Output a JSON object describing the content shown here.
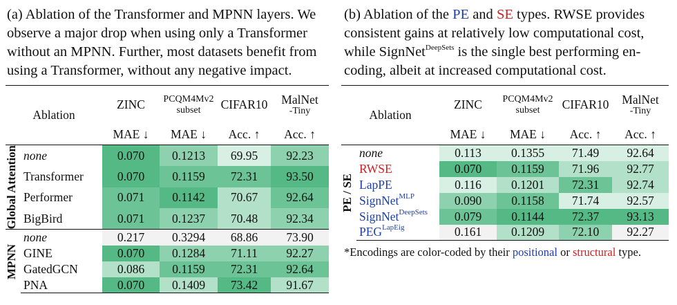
{
  "caption_a": {
    "lines": [
      "(a) Ablation of the Transformer and MPNN layers. We",
      "observe a major drop when using only a Transformer",
      "without an MPNN. Further, most datasets benefit from",
      "using a Transformer, without any negative impact."
    ]
  },
  "caption_b": {
    "p1": "(b) Ablation of the ",
    "pe": "PE",
    "p2": " and ",
    "se": "SE",
    "p3": " types. RWSE provides",
    "line2": "consistent gains at relatively low computational cost,",
    "l3a": "while SignNet",
    "l3sup": "DeepSets",
    "l3b": " is the single best performing en-",
    "line4": "coding, albeit at increased computational cost."
  },
  "table_a": {
    "headers": {
      "ablation": "Ablation",
      "zinc": "ZINC",
      "pcqm": "PCQM4Mv2",
      "pcqm_sub": "subset",
      "cifar": "CIFAR10",
      "malnet": "MalNet",
      "malnet_sub": "-Tiny",
      "m_zinc": "MAE ↓",
      "m_pcqm": "MAE ↓",
      "m_cifar": "Acc. ↑",
      "m_malnet": "Acc. ↑"
    },
    "groups": [
      {
        "label": "Global Attention",
        "rows": [
          {
            "name": "none",
            "italic": true,
            "values": [
              "0.070",
              "0.1213",
              "69.95",
              "92.23"
            ],
            "shades": [
              "c5",
              "c3",
              "c1",
              "c3"
            ]
          },
          {
            "name": "Transformer",
            "italic": false,
            "values": [
              "0.070",
              "0.1159",
              "72.31",
              "93.50"
            ],
            "shades": [
              "c5",
              "c4",
              "c4",
              "c5"
            ]
          },
          {
            "name": "Performer",
            "italic": false,
            "values": [
              "0.071",
              "0.1142",
              "70.67",
              "92.64"
            ],
            "shades": [
              "c4",
              "c5",
              "c2",
              "c4"
            ]
          },
          {
            "name": "BigBird",
            "italic": false,
            "values": [
              "0.071",
              "0.1237",
              "70.48",
              "92.34"
            ],
            "shades": [
              "c4",
              "c3",
              "c2",
              "c3"
            ]
          }
        ]
      },
      {
        "label": "MPNN",
        "rows": [
          {
            "name": "none",
            "italic": true,
            "values": [
              "0.217",
              "0.3294",
              "68.86",
              "73.90"
            ],
            "shades": [
              "c0",
              "c0",
              "c0",
              "c0"
            ]
          },
          {
            "name": "GINE",
            "italic": false,
            "values": [
              "0.070",
              "0.1284",
              "71.11",
              "92.27"
            ],
            "shades": [
              "c5",
              "c3",
              "c3",
              "c3"
            ]
          },
          {
            "name": "GatedGCN",
            "italic": false,
            "values": [
              "0.086",
              "0.1159",
              "72.31",
              "92.64"
            ],
            "shades": [
              "c2",
              "c4",
              "c4",
              "c4"
            ]
          },
          {
            "name": "PNA",
            "italic": false,
            "values": [
              "0.070",
              "0.1409",
              "73.42",
              "91.67"
            ],
            "shades": [
              "c5",
              "c2",
              "c5",
              "c2"
            ]
          }
        ]
      }
    ]
  },
  "table_b": {
    "headers": {
      "ablation": "Ablation",
      "zinc": "ZINC",
      "pcqm": "PCQM4Mv2",
      "pcqm_sub": "subset",
      "cifar": "CIFAR10",
      "malnet": "MalNet",
      "malnet_sub": "-Tiny",
      "m_zinc": "MAE ↓",
      "m_pcqm": "MAE ↓",
      "m_cifar": "Acc. ↑",
      "m_malnet": "Acc. ↑"
    },
    "group_label": "PE / SE",
    "rows": [
      {
        "name": "none",
        "sup": "",
        "type": "none",
        "italic": true,
        "values": [
          "0.113",
          "0.1355",
          "71.49",
          "92.64"
        ],
        "shades": [
          "c1",
          "c1",
          "c1",
          "c1"
        ]
      },
      {
        "name": "RWSE",
        "sup": "",
        "type": "structural",
        "italic": false,
        "values": [
          "0.070",
          "0.1159",
          "71.96",
          "92.77"
        ],
        "shades": [
          "c5",
          "c4",
          "c2",
          "c2"
        ]
      },
      {
        "name": "LapPE",
        "sup": "",
        "type": "positional",
        "italic": false,
        "values": [
          "0.116",
          "0.1201",
          "72.31",
          "92.74"
        ],
        "shades": [
          "c1",
          "c2",
          "c4",
          "c2"
        ]
      },
      {
        "name": "SignNet",
        "sup": "MLP",
        "type": "positional",
        "italic": false,
        "values": [
          "0.090",
          "0.1158",
          "71.74",
          "92.57"
        ],
        "shades": [
          "c3",
          "c4",
          "c1",
          "c1"
        ]
      },
      {
        "name": "SignNet",
        "sup": "DeepSets",
        "type": "positional",
        "italic": false,
        "values": [
          "0.079",
          "0.1144",
          "72.37",
          "93.13"
        ],
        "shades": [
          "c4",
          "c5",
          "c5",
          "c5"
        ]
      },
      {
        "name": "PEG",
        "sup": "LapEig",
        "type": "positional",
        "italic": false,
        "values": [
          "0.161",
          "0.1209",
          "72.10",
          "92.27"
        ],
        "shades": [
          "c0",
          "c2",
          "c3",
          "c0"
        ]
      }
    ]
  },
  "footnote": {
    "p1": "*Encodings are color-coded by their ",
    "positional": "positional",
    "p2": " or ",
    "structural": "structural",
    "p3": " type."
  },
  "colors": {
    "positional": "#1f3fa8",
    "structural": "#d02020",
    "shade_scale": [
      "#f2f2f2",
      "#d8efe4",
      "#b3e0c9",
      "#8ed1ae",
      "#6cc396",
      "#55b985"
    ]
  }
}
